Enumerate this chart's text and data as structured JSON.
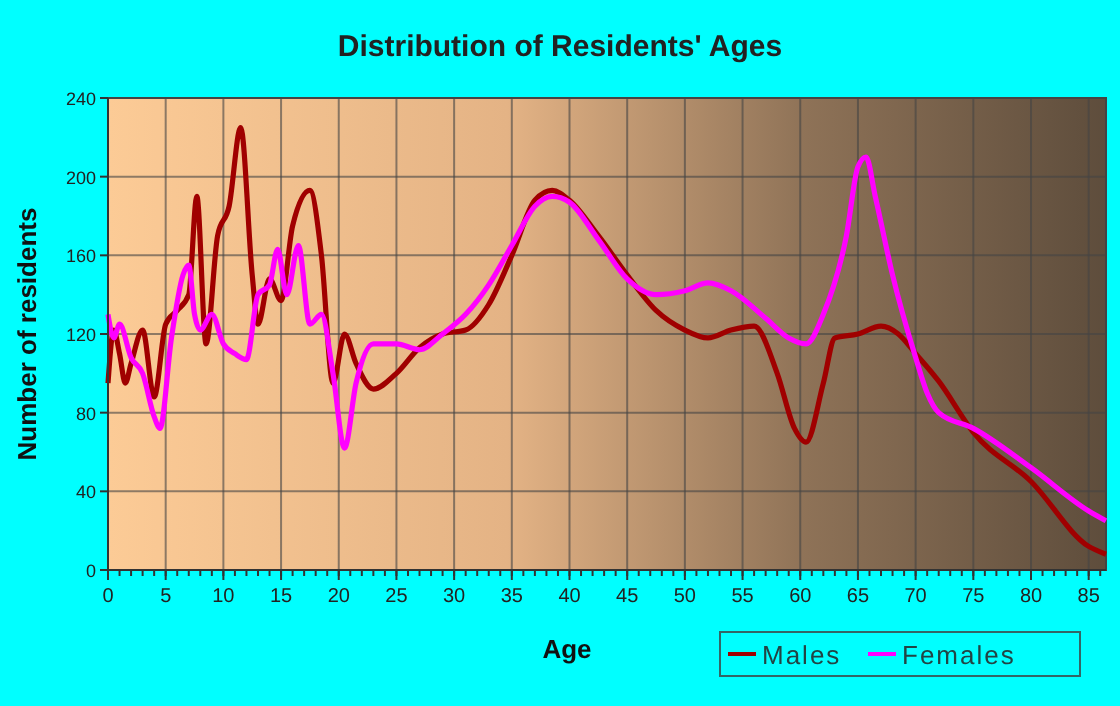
{
  "chart_data": {
    "type": "line",
    "title": "Distribution of Residents' Ages",
    "xlabel": "Age",
    "ylabel": "Number of residents",
    "xlim": [
      0,
      86.5
    ],
    "xticks": [
      0,
      5,
      10,
      15,
      20,
      25,
      30,
      35,
      40,
      45,
      50,
      55,
      60,
      65,
      70,
      75,
      80,
      85
    ],
    "ylim": [
      0,
      240
    ],
    "yticks": [
      0,
      40,
      80,
      120,
      160,
      200,
      240
    ],
    "grid": true,
    "legend": "bottom right",
    "marker": "none",
    "line_style": "solid",
    "series": [
      {
        "name": "Males",
        "color": "#a00000",
        "x": [
          0,
          0.5,
          1,
          1.5,
          2,
          3,
          4,
          5,
          6,
          7,
          7.7,
          8.5,
          9.5,
          10.5,
          11.5,
          12.5,
          13,
          14,
          15,
          16,
          17.5,
          18.5,
          19.5,
          20.5,
          21.5,
          23,
          25,
          27,
          29,
          31,
          33,
          35,
          37,
          38.5,
          40,
          42.5,
          45,
          47.5,
          50,
          52,
          54,
          56,
          58,
          59.5,
          60.5,
          62,
          63,
          65,
          67,
          68.5,
          70,
          72,
          75,
          80,
          85,
          86.5
        ],
        "values": [
          95,
          122,
          110,
          95,
          105,
          122,
          88,
          125,
          132,
          140,
          190,
          115,
          170,
          185,
          225,
          150,
          125,
          148,
          137,
          175,
          193,
          160,
          95,
          120,
          105,
          92,
          100,
          113,
          120,
          122,
          135,
          160,
          188,
          193,
          188,
          170,
          150,
          132,
          122,
          118,
          122,
          124,
          100,
          72,
          65,
          95,
          118,
          120,
          124,
          120,
          110,
          96,
          70,
          45,
          12,
          8
        ]
      },
      {
        "name": "Females",
        "color": "#ff00ff",
        "x": [
          0,
          0.5,
          1,
          2,
          3,
          4,
          4.5,
          5.5,
          6.5,
          7,
          7.5,
          8,
          9,
          10,
          11,
          12,
          13,
          14,
          14.7,
          15.5,
          16.5,
          17.5,
          18.5,
          19.5,
          20.5,
          21.5,
          23,
          25,
          27,
          29,
          31,
          33,
          35,
          37,
          38.5,
          40,
          42.5,
          45,
          47.5,
          50,
          52,
          54,
          57,
          59,
          60.5,
          62,
          64,
          65,
          65.7,
          66.5,
          68,
          70,
          71,
          72,
          75,
          80,
          85,
          86.5
        ],
        "values": [
          130,
          118,
          125,
          108,
          100,
          78,
          72,
          118,
          150,
          155,
          130,
          122,
          130,
          115,
          110,
          107,
          140,
          145,
          163,
          140,
          165,
          125,
          130,
          100,
          62,
          95,
          115,
          115,
          112,
          120,
          130,
          145,
          165,
          185,
          190,
          187,
          168,
          148,
          140,
          142,
          146,
          142,
          128,
          118,
          115,
          130,
          170,
          205,
          210,
          190,
          150,
          108,
          90,
          80,
          72,
          52,
          30,
          25
        ]
      }
    ]
  }
}
